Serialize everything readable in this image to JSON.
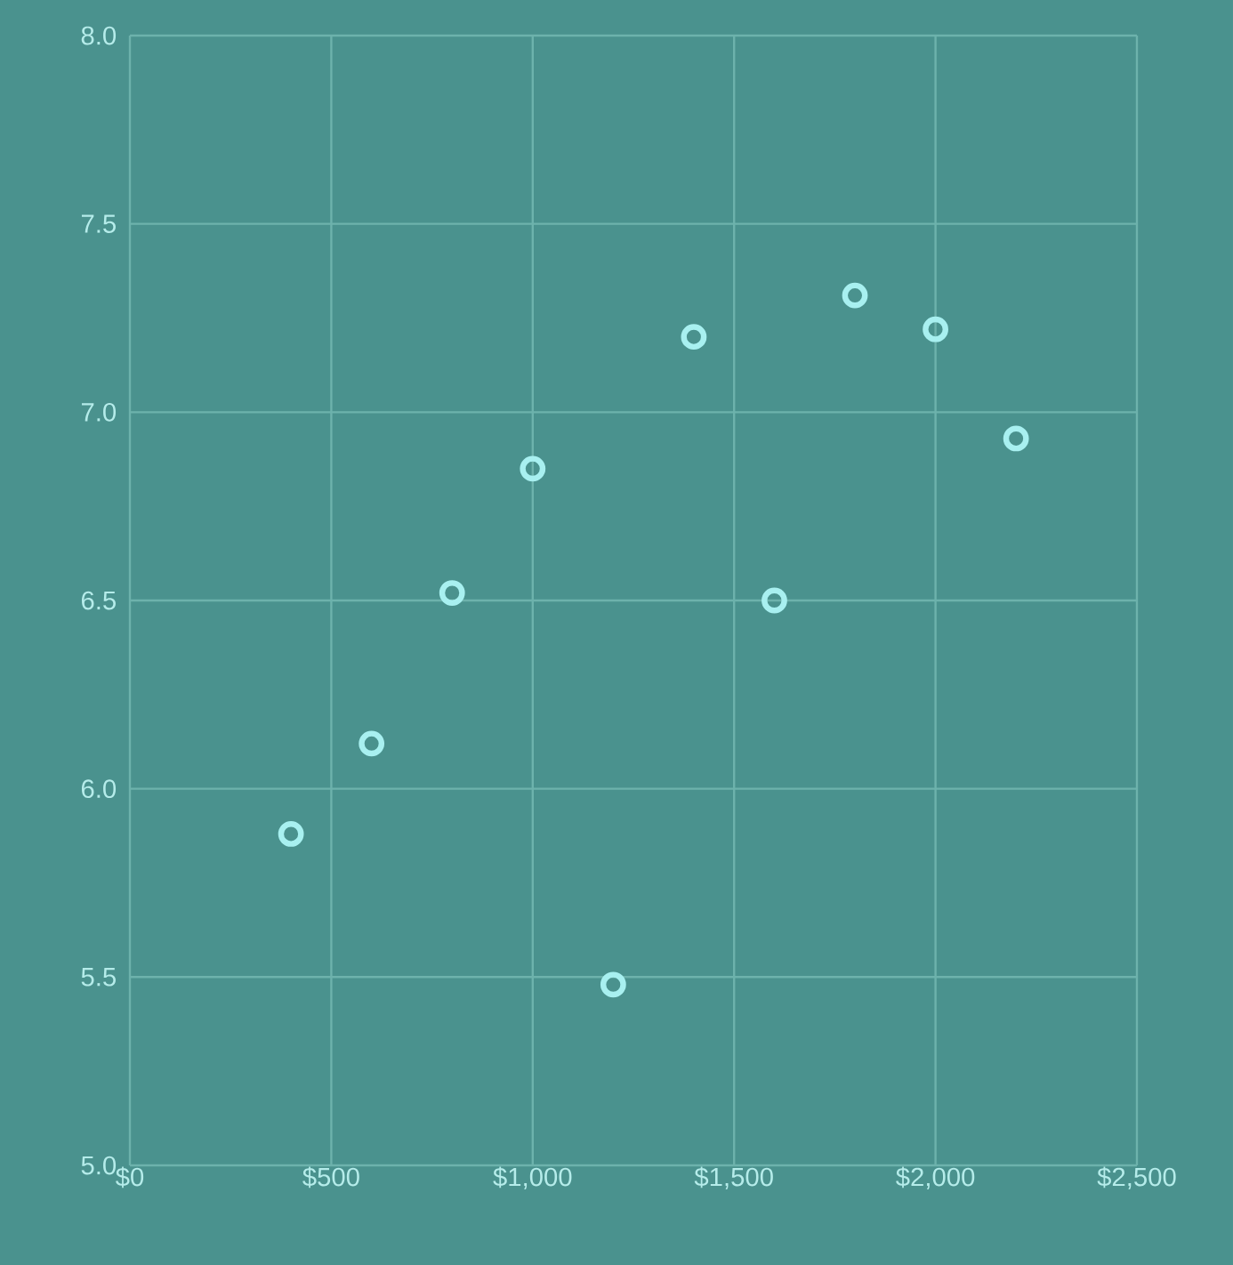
{
  "chart_data": {
    "type": "scatter",
    "x": [
      400,
      600,
      800,
      1000,
      1200,
      1400,
      1600,
      1800,
      2000,
      2200
    ],
    "values": [
      5.88,
      6.12,
      6.52,
      6.85,
      5.48,
      7.2,
      6.5,
      7.31,
      7.22,
      6.93
    ],
    "color": "#a8f0f0",
    "marker": "circle",
    "grid": true,
    "xlim": [
      0,
      2500
    ],
    "xticks": [
      {
        "value": 0,
        "label": "$0"
      },
      {
        "value": 500,
        "label": "$500"
      },
      {
        "value": 1000,
        "label": "$1,000"
      },
      {
        "value": 1500,
        "label": "$1,500"
      },
      {
        "value": 2000,
        "label": "$2,000"
      },
      {
        "value": 2500,
        "label": "$2,500"
      }
    ],
    "ylim": [
      5,
      8
    ],
    "yticks": [
      {
        "value": 5,
        "label": "5.0"
      },
      {
        "value": 5.5,
        "label": "5.5"
      },
      {
        "value": 6,
        "label": "6.0"
      },
      {
        "value": 6.5,
        "label": "6.5"
      },
      {
        "value": 7,
        "label": "7.0"
      },
      {
        "value": 7.5,
        "label": "7.5"
      },
      {
        "value": 8,
        "label": "8.0"
      }
    ]
  }
}
